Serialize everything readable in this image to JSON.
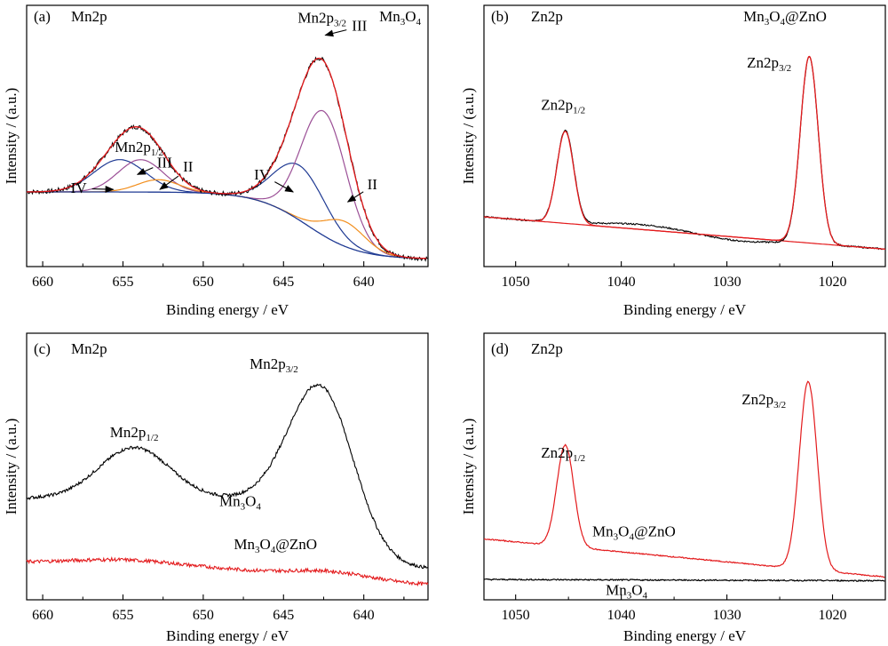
{
  "chart_data": [
    {
      "type": "line",
      "panel_label": "(a)",
      "element": "Mn2p",
      "sample": "Mn3O4",
      "xlabel": "Binding energy / eV",
      "ylabel": "Intensity / (a.u.)",
      "xlim": [
        661,
        636
      ],
      "ylim": [
        0,
        1.05
      ],
      "x_reversed": true,
      "xticks": [
        660,
        655,
        650,
        645,
        640
      ],
      "peaks": [
        {
          "center": 642.5,
          "height": 0.72,
          "width": 2.2,
          "side": "3/2"
        },
        {
          "center": 654.1,
          "height": 0.24,
          "width": 2.3,
          "side": "1/2"
        }
      ],
      "baseline": {
        "high": 0.3,
        "low": 0.03,
        "step_center": 643.5,
        "step_width": 1.6
      },
      "series": [
        {
          "name": "",
          "role": "raw",
          "color": "#000000"
        },
        {
          "name": "",
          "role": "envelope",
          "color": "#e31a1c"
        },
        {
          "name": "",
          "role": "background",
          "color": "#1f3a93"
        },
        {
          "name": "IV",
          "role": "component",
          "color": "#1f3a93",
          "centers": [
            655.2,
            644.0
          ],
          "heights": [
            0.13,
            0.22
          ],
          "width": 1.6
        },
        {
          "name": "III",
          "role": "component",
          "color": "#9b4f96",
          "centers": [
            653.9,
            642.5
          ],
          "heights": [
            0.13,
            0.5
          ],
          "width": 1.4
        },
        {
          "name": "II",
          "role": "component",
          "color": "#f28e1c",
          "centers": [
            652.8,
            641.2
          ],
          "heights": [
            0.05,
            0.1
          ],
          "width": 1.3
        }
      ],
      "annotations": {
        "peak_1_2": {
          "main": "Mn2p",
          "sub": "1/2"
        },
        "peak_3_2": {
          "main": "Mn2p",
          "sub": "3/2"
        },
        "labels": [
          {
            "text": "IV",
            "color": "#1f3a93",
            "arrow_to": [
              655.6,
              0.31
            ]
          },
          {
            "text": "III",
            "color": "#9b4f96",
            "arrow_to": [
              654.1,
              0.37
            ]
          },
          {
            "text": "II",
            "color": "#f28e1c",
            "arrow_to": [
              652.7,
              0.31
            ]
          },
          {
            "text": "III",
            "color": "#9b4f96",
            "arrow_to": [
              642.4,
              0.93
            ]
          },
          {
            "text": "IV",
            "color": "#1f3a93",
            "arrow_to": [
              644.4,
              0.3
            ]
          },
          {
            "text": "II",
            "color": "#f28e1c",
            "arrow_to": [
              641.0,
              0.26
            ]
          }
        ]
      }
    },
    {
      "type": "line",
      "panel_label": "(b)",
      "element": "Zn2p",
      "sample": "Mn3O4@ZnO",
      "xlabel": "Binding energy / eV",
      "ylabel": "Intensity / (a.u.)",
      "xlim": [
        1053,
        1015
      ],
      "ylim": [
        0,
        1.05
      ],
      "x_reversed": true,
      "xticks": [
        1050,
        1040,
        1030,
        1020
      ],
      "peaks": [
        {
          "center": 1022.2,
          "height": 0.75,
          "width": 0.85,
          "side": "3/2"
        },
        {
          "center": 1045.3,
          "height": 0.37,
          "width": 0.8,
          "side": "1/2"
        }
      ],
      "baseline": {
        "start": 0.2,
        "end": 0.07
      },
      "series": [
        {
          "name": "",
          "role": "raw",
          "color": "#000000"
        },
        {
          "name": "",
          "role": "fit",
          "color": "#e31a1c"
        }
      ],
      "annotations": {
        "peak_1_2": {
          "main": "Zn2p",
          "sub": "1/2"
        },
        "peak_3_2": {
          "main": "Zn2p",
          "sub": "3/2"
        }
      }
    },
    {
      "type": "line",
      "panel_label": "(c)",
      "element": "Mn2p",
      "sample": "",
      "xlabel": "Binding energy / eV",
      "ylabel": "Intensity / (a.u.)",
      "xlim": [
        661,
        636
      ],
      "ylim": [
        0,
        1.05
      ],
      "x_reversed": true,
      "xticks": [
        660,
        655,
        650,
        645,
        640
      ],
      "series": [
        {
          "name": "Mn3O4",
          "label": {
            "main": "Mn",
            "s1": "3",
            "mid": "O",
            "s2": "4",
            "tail": ""
          },
          "color": "#000000",
          "baseline": {
            "high": 0.4,
            "low": 0.12,
            "step_center": 641.0,
            "step_width": 1.2
          },
          "peaks": [
            {
              "center": 642.6,
              "height": 0.5,
              "width": 2.0
            },
            {
              "center": 654.3,
              "height": 0.2,
              "width": 2.2
            }
          ]
        },
        {
          "name": "Mn3O4@ZnO",
          "label": {
            "main": "Mn",
            "s1": "3",
            "mid": "O",
            "s2": "4",
            "tail": "@ZnO"
          },
          "color": "#e31a1c",
          "baseline": {
            "high": 0.15,
            "low": 0.05,
            "step_center": 645.0,
            "step_width": 4.0
          },
          "peaks": [
            {
              "center": 642.0,
              "height": 0.03,
              "width": 2.5
            },
            {
              "center": 655.0,
              "height": 0.015,
              "width": 3.0
            }
          ]
        }
      ],
      "annotations": {
        "peak_1_2": {
          "main": "Mn2p",
          "sub": "1/2"
        },
        "peak_3_2": {
          "main": "Mn2p",
          "sub": "3/2"
        }
      }
    },
    {
      "type": "line",
      "panel_label": "(d)",
      "element": "Zn2p",
      "sample": "",
      "xlabel": "Binding energy / eV",
      "ylabel": "Intensity / (a.u.)",
      "xlim": [
        1053,
        1015
      ],
      "ylim": [
        0,
        1.05
      ],
      "x_reversed": true,
      "xticks": [
        1050,
        1040,
        1030,
        1020
      ],
      "series": [
        {
          "name": "Mn3O4@ZnO",
          "label": {
            "main": "Mn",
            "s1": "3",
            "mid": "O",
            "s2": "4",
            "tail": "@ZnO"
          },
          "color": "#e31a1c",
          "baseline": {
            "start": 0.24,
            "end": 0.09
          },
          "peaks": [
            {
              "center": 1022.3,
              "height": 0.74,
              "width": 0.85
            },
            {
              "center": 1045.3,
              "height": 0.4,
              "width": 0.8
            }
          ]
        },
        {
          "name": "Mn3O4",
          "label": {
            "main": "Mn",
            "s1": "3",
            "mid": "O",
            "s2": "4",
            "tail": ""
          },
          "color": "#000000",
          "baseline": {
            "start": 0.08,
            "end": 0.075
          },
          "peaks": []
        }
      ],
      "annotations": {
        "peak_1_2": {
          "main": "Zn2p",
          "sub": "1/2"
        },
        "peak_3_2": {
          "main": "Zn2p",
          "sub": "3/2"
        }
      }
    }
  ]
}
